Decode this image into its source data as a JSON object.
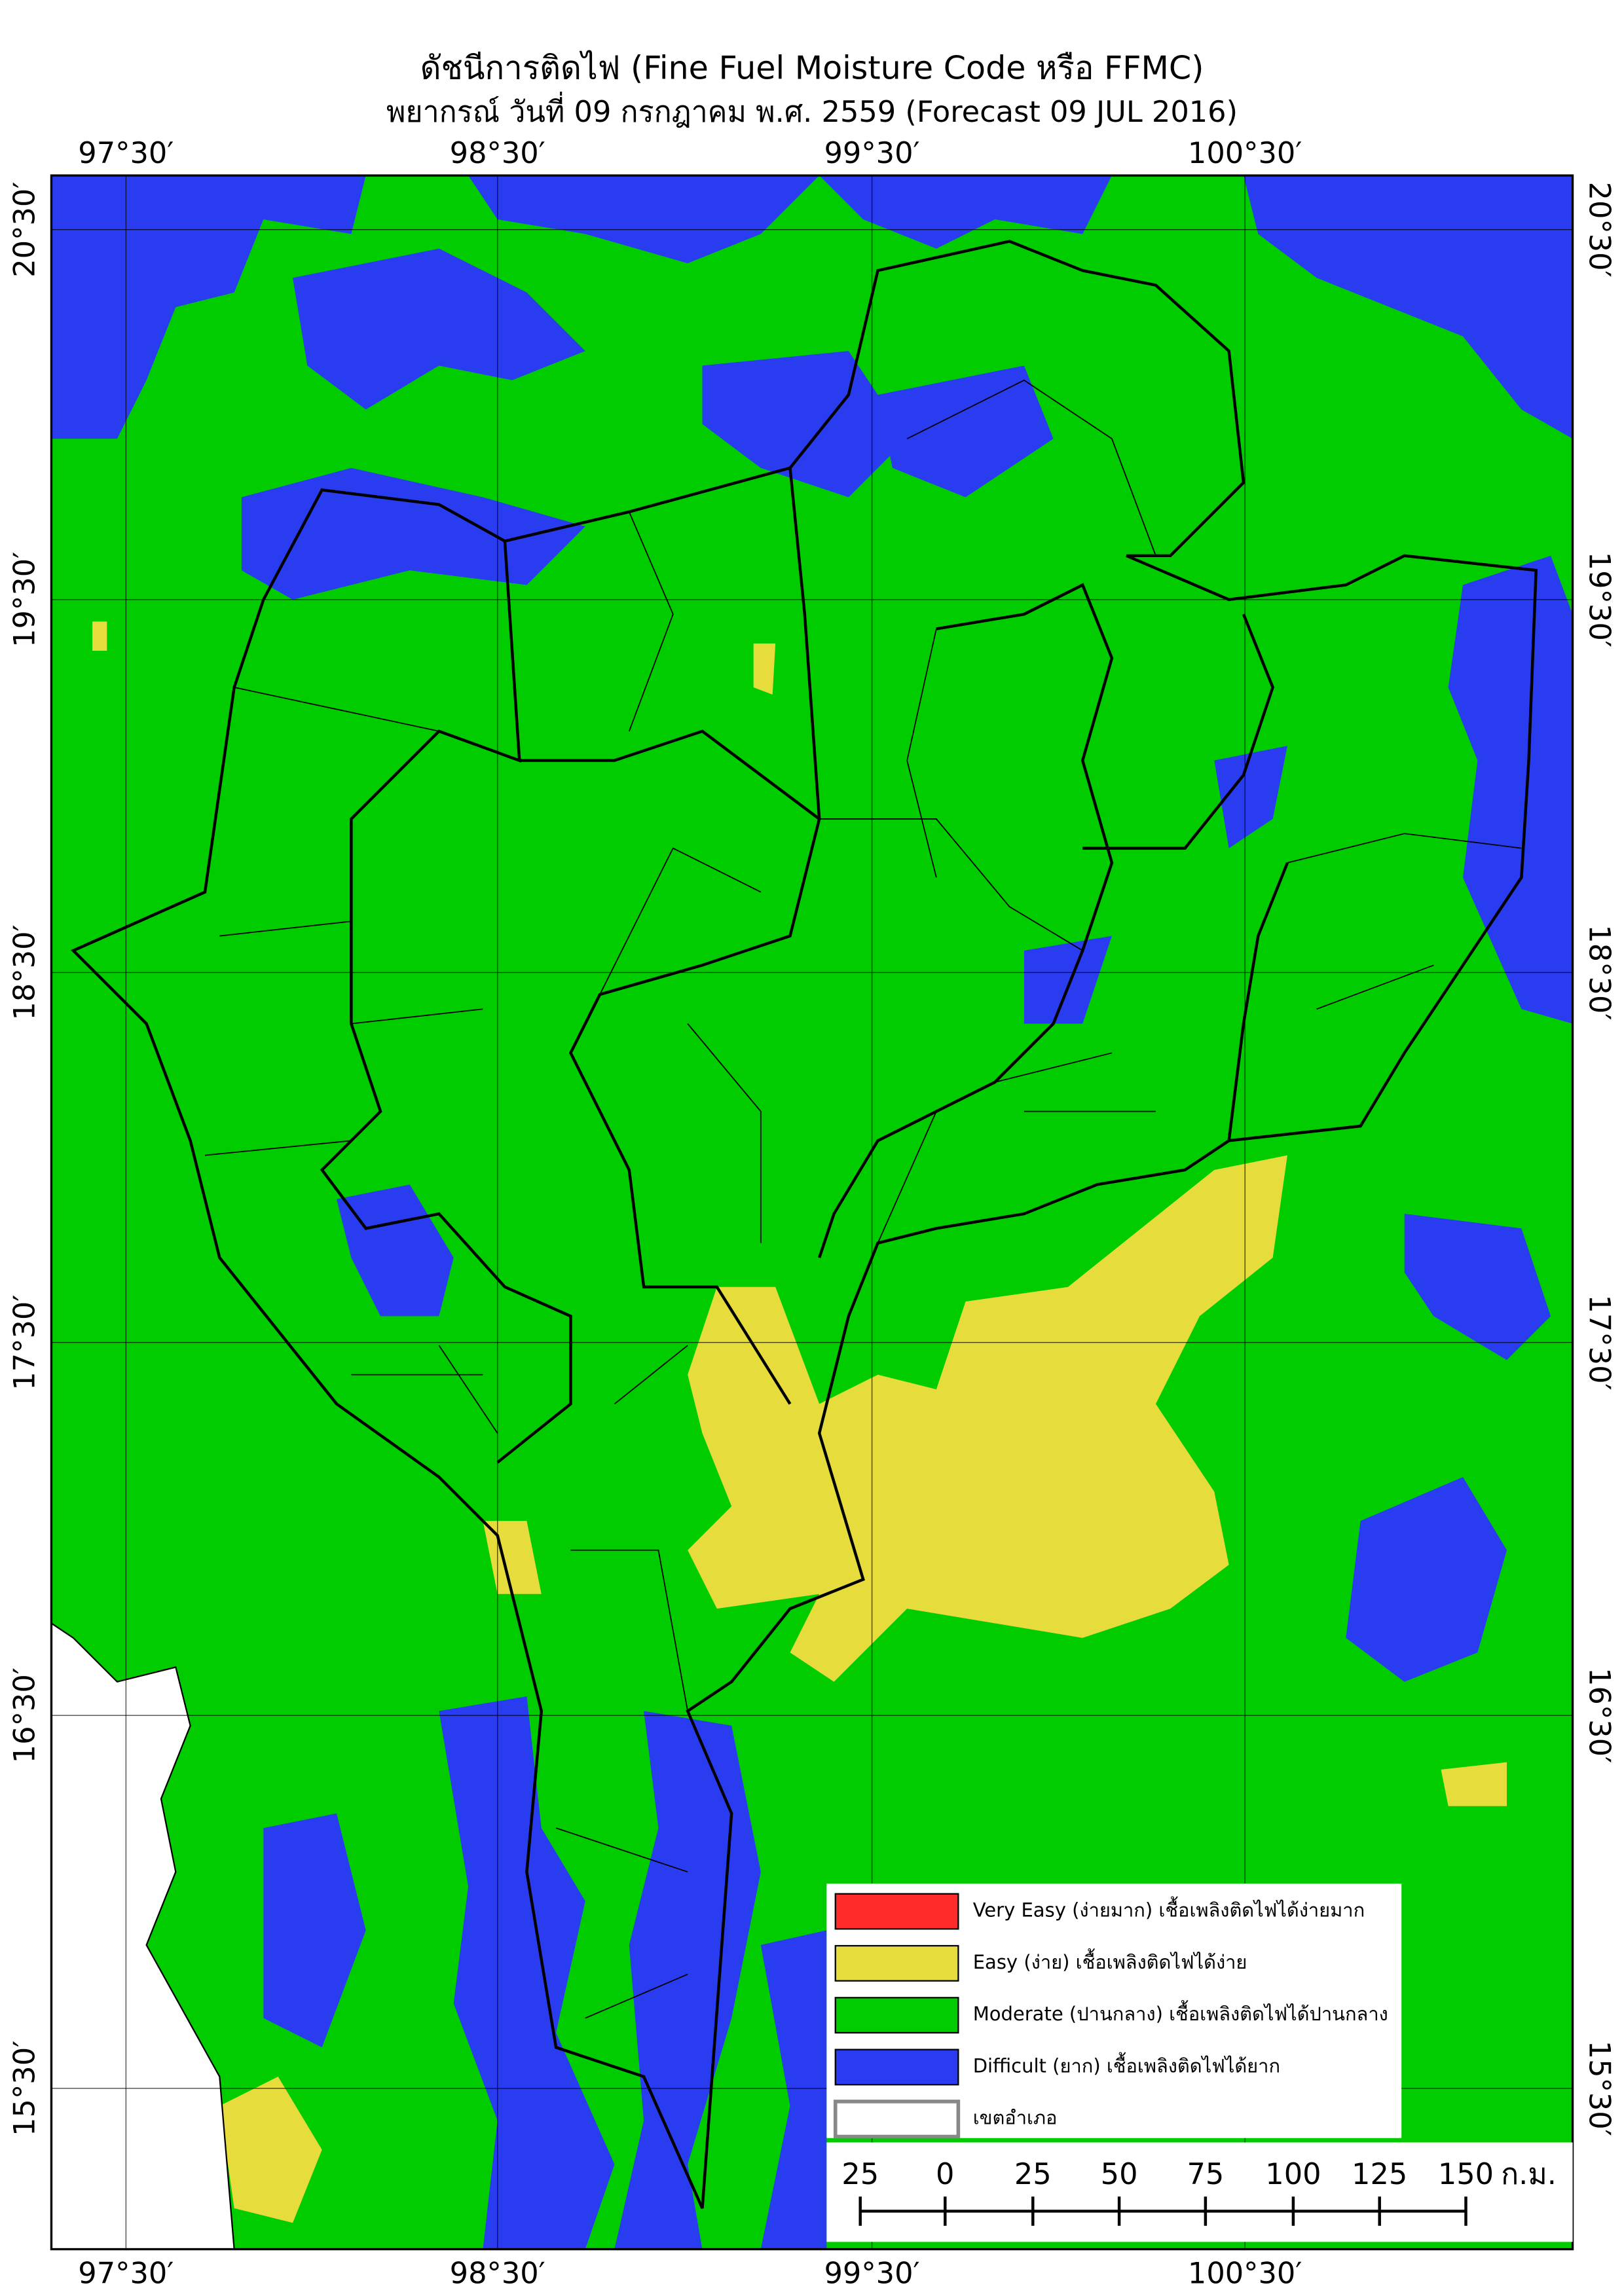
{
  "title": "ดัชนีการติดไฟ (Fine Fuel Moisture Code หรือ FFMC)",
  "subtitle": "พยากรณ์ วันที่ 09 กรกฎาคม พ.ศ. 2559 (Forecast 09 JUL 2016)",
  "lon_labels": [
    "97°30′",
    "98°30′",
    "99°30′",
    "100°30′"
  ],
  "lat_labels": [
    "20°30′",
    "19°30′",
    "18°30′",
    "17°30′",
    "16°30′",
    "15°30′"
  ],
  "legend": [
    {
      "label": "Very Easy (ง่ายมาก) เชื้อเพลิงติดไฟได้ง่ายมาก",
      "color": "#ff2a2a"
    },
    {
      "label": "Easy (ง่าย) เชื้อเพลิงติดไฟได้ง่าย",
      "color": "#e6dc3c"
    },
    {
      "label": "Moderate (ปานกลาง) เชื้อเพลิงติดไฟได้ปานกลาง",
      "color": "#00cc00"
    },
    {
      "label": "Difficult (ยาก) เชื้อเพลิงติดไฟได้ยาก",
      "color": "#2a3cf0"
    },
    {
      "label": "เขตอำเภอ",
      "color": "#ffffff"
    }
  ],
  "scale": {
    "labels": [
      "25",
      "0",
      "25",
      "50",
      "75",
      "100",
      "125",
      "150"
    ],
    "unit": "ก.ม."
  }
}
